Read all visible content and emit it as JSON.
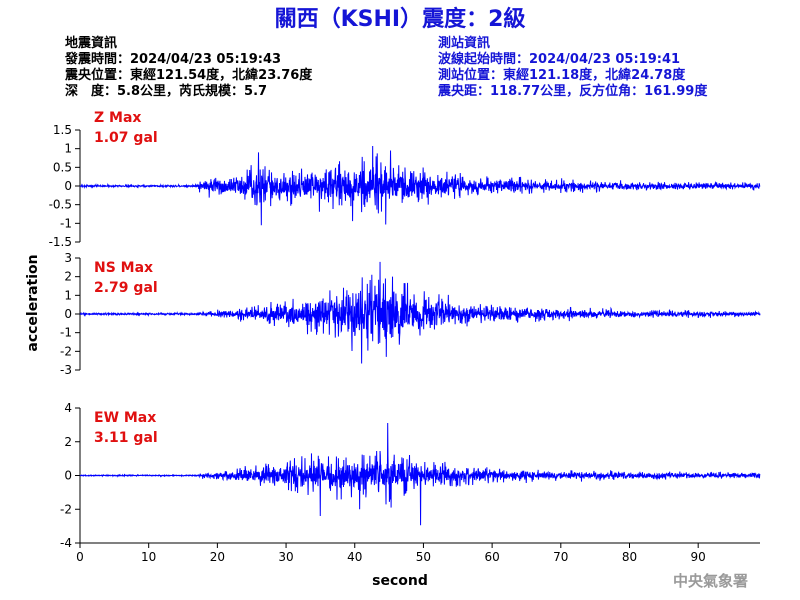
{
  "title": "關西（KSHI）震度：2級",
  "quake_info": {
    "heading": "地震資訊",
    "origin_time": "發震時間：2024/04/23 05:19:43",
    "epicenter": "震央位置：東經121.54度，北緯23.76度",
    "depth_magnitude": "深　度：5.8公里，芮氏規模：5.7"
  },
  "station_info": {
    "heading": "測站資訊",
    "wave_start_time": "波線起始時間：2024/04/23 05:19:41",
    "station_location": "測站位置：東經121.18度，北緯24.78度",
    "distance_azimuth": "震央距：118.77公里，反方位角：161.99度"
  },
  "agency": "中央氣象署",
  "colors": {
    "title": "#1515d6",
    "station_info": "#1515d6",
    "trace": "#0000ff",
    "max_label": "#e01010",
    "agency": "#9a9a9a"
  },
  "chart_data": {
    "type": "line",
    "x_label": "second",
    "y_label": "acceleration",
    "xlim": [
      0,
      99
    ],
    "x_ticks": [
      0,
      10,
      20,
      30,
      40,
      50,
      60,
      70,
      80,
      90
    ],
    "grid": false,
    "panels": [
      {
        "component": "Z",
        "max_label": "Z Max",
        "max_value": "1.07 gal",
        "ylim": [
          -1.5,
          1.5
        ],
        "y_ticks": [
          1.5,
          1,
          0.5,
          0,
          -0.5,
          -1,
          -1.5
        ],
        "envelope": [
          [
            0,
            0.04
          ],
          [
            17,
            0.04
          ],
          [
            17.6,
            0.32
          ],
          [
            20,
            0.35
          ],
          [
            23,
            0.42
          ],
          [
            25,
            0.8
          ],
          [
            27,
            0.72
          ],
          [
            30,
            0.65
          ],
          [
            33,
            0.62
          ],
          [
            36,
            0.75
          ],
          [
            40,
            0.85
          ],
          [
            43,
            0.95
          ],
          [
            46,
            0.7
          ],
          [
            50,
            0.62
          ],
          [
            55,
            0.42
          ],
          [
            60,
            0.3
          ],
          [
            70,
            0.22
          ],
          [
            80,
            0.15
          ],
          [
            90,
            0.13
          ],
          [
            99,
            0.11
          ]
        ],
        "peaks": [
          {
            "x": 26.0,
            "y": 0.9
          },
          {
            "x": 26.4,
            "y": -1.05
          },
          {
            "x": 39.7,
            "y": -0.94
          },
          {
            "x": 42.6,
            "y": 1.07
          },
          {
            "x": 44.5,
            "y": -1.03
          },
          {
            "x": 45.2,
            "y": 0.95
          }
        ]
      },
      {
        "component": "NS",
        "max_label": "NS Max",
        "max_value": "2.79 gal",
        "ylim": [
          -3,
          3
        ],
        "y_ticks": [
          3,
          2,
          1,
          0,
          -1,
          -2,
          -3
        ],
        "envelope": [
          [
            0,
            0.08
          ],
          [
            17,
            0.08
          ],
          [
            18,
            0.15
          ],
          [
            21,
            0.3
          ],
          [
            25,
            0.6
          ],
          [
            30,
            1.0
          ],
          [
            35,
            1.5
          ],
          [
            38,
            2.0
          ],
          [
            41,
            2.5
          ],
          [
            44,
            2.6
          ],
          [
            47,
            2.2
          ],
          [
            50,
            1.6
          ],
          [
            55,
            0.9
          ],
          [
            60,
            0.65
          ],
          [
            65,
            0.5
          ],
          [
            70,
            0.4
          ],
          [
            80,
            0.28
          ],
          [
            90,
            0.22
          ],
          [
            99,
            0.16
          ]
        ],
        "peaks": [
          {
            "x": 41.0,
            "y": -2.65
          },
          {
            "x": 42.5,
            "y": 2.1
          },
          {
            "x": 43.7,
            "y": 2.79
          },
          {
            "x": 44.6,
            "y": -2.3
          },
          {
            "x": 45.5,
            "y": 2.0
          }
        ]
      },
      {
        "component": "EW",
        "max_label": "EW Max",
        "max_value": "3.11 gal",
        "ylim": [
          -4,
          4
        ],
        "y_ticks": [
          4,
          2,
          0,
          -2,
          -4
        ],
        "envelope": [
          [
            0,
            0.05
          ],
          [
            17,
            0.05
          ],
          [
            18,
            0.25
          ],
          [
            22,
            0.5
          ],
          [
            26,
            0.8
          ],
          [
            30,
            1.1
          ],
          [
            35,
            1.5
          ],
          [
            40,
            1.7
          ],
          [
            44,
            2.0
          ],
          [
            47,
            1.6
          ],
          [
            50,
            1.1
          ],
          [
            55,
            0.75
          ],
          [
            60,
            0.55
          ],
          [
            70,
            0.4
          ],
          [
            80,
            0.3
          ],
          [
            90,
            0.25
          ],
          [
            99,
            0.2
          ]
        ],
        "peaks": [
          {
            "x": 35.0,
            "y": -2.4
          },
          {
            "x": 40.7,
            "y": -2.0
          },
          {
            "x": 44.8,
            "y": 3.11
          },
          {
            "x": 45.3,
            "y": -1.9
          },
          {
            "x": 49.6,
            "y": -2.95
          }
        ]
      }
    ]
  }
}
